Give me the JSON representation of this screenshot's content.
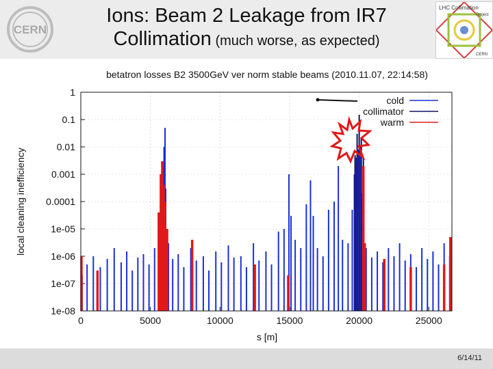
{
  "header": {
    "title_line1": "Ions: Beam 2 Leakage from IR7",
    "title_line2_main": "Collimation",
    "title_line2_note": " (much worse, as expected)"
  },
  "logos": {
    "left": "CERN",
    "right_lines": [
      "LHC Collimation",
      "Project",
      "CERN"
    ]
  },
  "footer": {
    "date": "6/14/11"
  },
  "chart_data": {
    "type": "bar",
    "title": "betatron losses B2 3500GeV ver norm stable beams (2010.11.07, 22:14:58)",
    "xlabel": "s [m]",
    "ylabel": "local cleaning inefficiency",
    "xlim": [
      0,
      26659
    ],
    "ylim": [
      1e-08,
      1
    ],
    "yscale": "log",
    "xticks": [
      "0",
      "5000",
      "10000",
      "15000",
      "20000",
      "25000"
    ],
    "yticks": [
      "1",
      "0.1",
      "0.01",
      "0.001",
      "0.0001",
      "1e-05",
      "1e-06",
      "1e-07",
      "1e-08"
    ],
    "legend_position": "top-right",
    "grid": true,
    "series": [
      {
        "name": "cold",
        "color": "#1a2fd6",
        "points": [
          [
            100,
            2e-07
          ],
          [
            450,
            5e-07
          ],
          [
            900,
            1e-06
          ],
          [
            1400,
            4e-07
          ],
          [
            1900,
            8e-07
          ],
          [
            2400,
            2e-06
          ],
          [
            2900,
            6e-07
          ],
          [
            3300,
            1.5e-06
          ],
          [
            3700,
            3e-07
          ],
          [
            4100,
            9e-07
          ],
          [
            4500,
            1.2e-06
          ],
          [
            4900,
            5e-07
          ],
          [
            5300,
            2e-06
          ],
          [
            5650,
            1e-05
          ],
          [
            5800,
            0.0003
          ],
          [
            5900,
            0.002
          ],
          [
            5980,
            0.01
          ],
          [
            6050,
            0.05
          ],
          [
            6100,
            0.0003
          ],
          [
            6180,
            1e-05
          ],
          [
            6300,
            3e-06
          ],
          [
            6600,
            8e-07
          ],
          [
            7000,
            1.2e-06
          ],
          [
            7400,
            4e-07
          ],
          [
            7900,
            2e-06
          ],
          [
            8300,
            7e-07
          ],
          [
            8800,
            1e-06
          ],
          [
            9200,
            3e-07
          ],
          [
            9700,
            1.5e-06
          ],
          [
            10100,
            6e-07
          ],
          [
            10600,
            2.5e-06
          ],
          [
            11000,
            9e-07
          ],
          [
            11500,
            1e-06
          ],
          [
            11900,
            4e-07
          ],
          [
            12400,
            3e-06
          ],
          [
            12800,
            7e-07
          ],
          [
            13300,
            1.5e-06
          ],
          [
            13700,
            5e-07
          ],
          [
            14200,
            8e-06
          ],
          [
            14600,
            1e-05
          ],
          [
            14950,
            0.001
          ],
          [
            15100,
            3e-05
          ],
          [
            15400,
            4e-06
          ],
          [
            15800,
            2e-06
          ],
          [
            16200,
            8e-05
          ],
          [
            16500,
            0.0006
          ],
          [
            16700,
            3e-05
          ],
          [
            17000,
            2e-06
          ],
          [
            17400,
            1e-06
          ],
          [
            17800,
            5e-05
          ],
          [
            18200,
            0.0001
          ],
          [
            18500,
            0.002
          ],
          [
            18800,
            4e-06
          ],
          [
            19200,
            3e-06
          ],
          [
            19500,
            5e-05
          ],
          [
            19650,
            0.001
          ],
          [
            19800,
            0.004
          ],
          [
            19950,
            0.008
          ],
          [
            20100,
            0.01
          ],
          [
            20250,
            0.0002
          ],
          [
            20500,
            2e-06
          ],
          [
            20900,
            9e-07
          ],
          [
            21300,
            1.5e-06
          ],
          [
            21700,
            6e-07
          ],
          [
            22100,
            2e-06
          ],
          [
            22500,
            1e-06
          ],
          [
            22900,
            3e-06
          ],
          [
            23300,
            7e-07
          ],
          [
            23700,
            1.2e-06
          ],
          [
            24100,
            4e-07
          ],
          [
            24500,
            2e-06
          ],
          [
            24900,
            8e-07
          ],
          [
            25300,
            1.5e-06
          ],
          [
            25700,
            5e-07
          ],
          [
            26100,
            3e-06
          ],
          [
            26500,
            1e-06
          ]
        ]
      },
      {
        "name": "collimator",
        "color": "#101060",
        "points": [
          [
            19700,
            0.005
          ],
          [
            19850,
            0.03
          ],
          [
            20000,
            0.15
          ],
          [
            20150,
            0.02
          ],
          [
            20300,
            0.004
          ]
        ]
      },
      {
        "name": "warm",
        "color": "#e01818",
        "points": [
          [
            50,
            1e-06
          ],
          [
            1200,
            3e-07
          ],
          [
            5600,
            4e-05
          ],
          [
            5750,
            0.001
          ],
          [
            5850,
            0.003
          ],
          [
            5950,
            0.0004
          ],
          [
            6050,
            0.0001
          ],
          [
            6200,
            1e-05
          ],
          [
            8000,
            4e-06
          ],
          [
            12500,
            5e-07
          ],
          [
            14900,
            2e-07
          ],
          [
            20300,
            0.002
          ],
          [
            20400,
            3e-06
          ],
          [
            21800,
            8e-07
          ],
          [
            23700,
            4e-07
          ],
          [
            26100,
            5e-07
          ],
          [
            26550,
            5e-06
          ]
        ]
      }
    ]
  }
}
